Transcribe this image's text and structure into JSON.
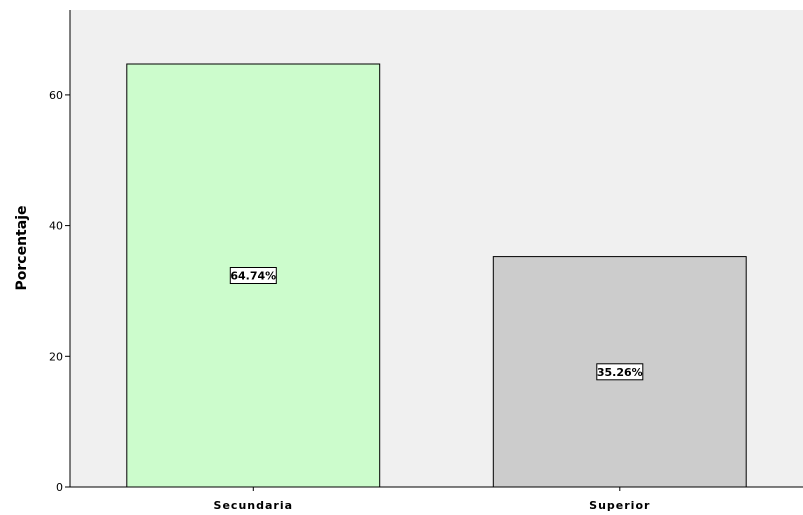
{
  "chart_data": {
    "type": "bar",
    "categories": [
      "Secundaria",
      "Superior"
    ],
    "values": [
      64.74,
      35.26
    ],
    "data_labels": [
      "64.74%",
      "35.26%"
    ],
    "bar_colors": [
      "#ccfccc",
      "#cccccc"
    ],
    "xlabel": "",
    "ylabel": "Porcentaje",
    "ylim": [
      0,
      73
    ],
    "yticks": [
      0,
      20,
      40,
      60
    ],
    "ytick_labels": [
      "0",
      "20",
      "40",
      "60"
    ],
    "plot_background": "#f0f0f0",
    "grid": false,
    "legend": false
  }
}
